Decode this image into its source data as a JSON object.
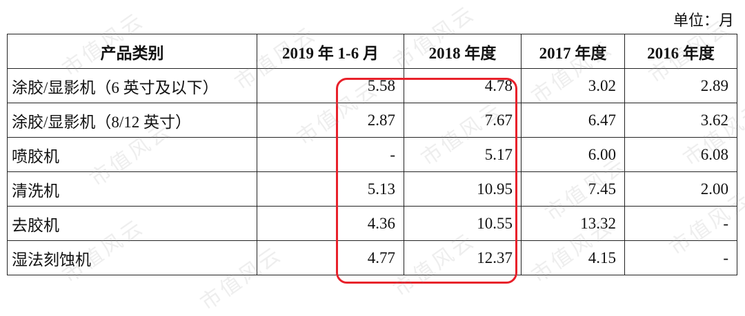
{
  "unit": "单位：月",
  "watermark": "市值风云",
  "table": {
    "header": [
      "产品类别",
      "2019 年 1-6 月",
      "2018 年度",
      "2017 年度",
      "2016 年度"
    ],
    "rows": [
      [
        "涂胶/显影机（6 英寸及以下）",
        "5.58",
        "4.78",
        "3.02",
        "2.89"
      ],
      [
        "涂胶/显影机（8/12 英寸）",
        "2.87",
        "7.67",
        "6.47",
        "3.62"
      ],
      [
        "喷胶机",
        "-",
        "5.17",
        "6.00",
        "6.08"
      ],
      [
        "清洗机",
        "5.13",
        "10.95",
        "7.45",
        "2.00"
      ],
      [
        "去胶机",
        "4.36",
        "10.55",
        "13.32",
        "-"
      ],
      [
        "湿法刻蚀机",
        "4.77",
        "12.37",
        "4.15",
        "-"
      ]
    ]
  }
}
